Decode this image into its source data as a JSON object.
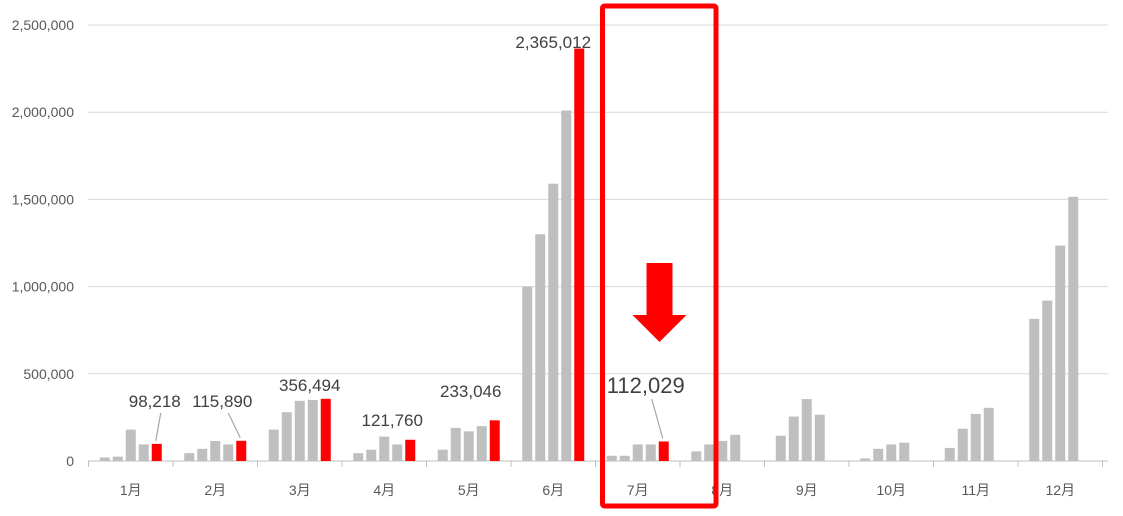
{
  "chart_data": {
    "type": "bar",
    "categories": [
      "1月",
      "2月",
      "3月",
      "4月",
      "5月",
      "6月",
      "7月",
      "8月",
      "9月",
      "10月",
      "11月",
      "12月"
    ],
    "series": [
      {
        "values": [
          20000,
          45000,
          180000,
          45000,
          65000,
          1000000,
          30000,
          55000,
          145000,
          15000,
          75000,
          815000
        ]
      },
      {
        "values": [
          25000,
          70000,
          280000,
          65000,
          190000,
          1300000,
          30000,
          95000,
          255000,
          70000,
          185000,
          920000
        ]
      },
      {
        "values": [
          180000,
          115000,
          345000,
          140000,
          170000,
          1590000,
          95000,
          115000,
          355000,
          95000,
          270000,
          1235000
        ]
      },
      {
        "values": [
          95000,
          95000,
          350000,
          95000,
          200000,
          2010000,
          95000,
          150000,
          265000,
          105000,
          305000,
          1515000
        ]
      },
      {
        "values": [
          98218,
          115890,
          356494,
          121760,
          233046,
          2365012,
          112029,
          null,
          null,
          null,
          null,
          null
        ]
      }
    ],
    "data_labels": [
      "98,218",
      "115,890",
      "356,494",
      "121,760",
      "233,046",
      "2,365,012",
      "112,029"
    ],
    "highlight_month": "7月",
    "ylim": [
      0,
      2500000
    ],
    "yticks": [
      0,
      500000,
      1000000,
      1500000,
      2000000,
      2500000
    ],
    "ytick_labels": [
      "0",
      "500,000",
      "1,000,000",
      "1,500,000",
      "2,000,000",
      "2,500,000"
    ],
    "grid": true,
    "colors": {
      "past": "#bfbfbf",
      "current": "#ff0000",
      "grid": "#d9d9d9",
      "axis_text": "#595959",
      "label_text": "#404040"
    }
  }
}
